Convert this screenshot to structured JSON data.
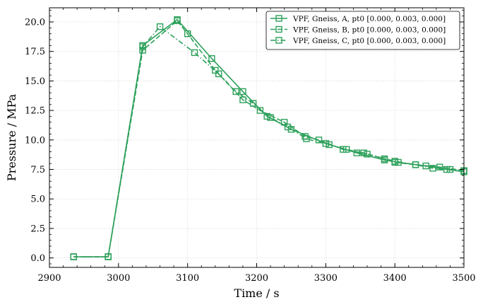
{
  "chart_data": {
    "type": "line",
    "xlabel": "Time / s",
    "ylabel": "Pressure / MPa",
    "xlim": [
      2900,
      3500
    ],
    "ylim": [
      -0.8,
      21.2
    ],
    "x_ticks": [
      2900,
      3000,
      3100,
      3200,
      3300,
      3400,
      3500
    ],
    "x_tick_labels": [
      "2900",
      "3000",
      "3100",
      "3200",
      "3300",
      "3400",
      "3500"
    ],
    "y_ticks": [
      0,
      2.5,
      5,
      7.5,
      10,
      12.5,
      15,
      17.5,
      20
    ],
    "y_tick_labels": [
      "0.0",
      "2.5",
      "5.0",
      "7.5",
      "10.0",
      "12.5",
      "15.0",
      "17.5",
      "20.0"
    ],
    "grid": true,
    "legend_position": "top-right",
    "color": "#2ca05a",
    "series": [
      {
        "name": "VPF, Gneiss, A, pt0 [0.000, 0.003, 0.000]",
        "dash": "solid",
        "x": [
          2935,
          2985,
          3035,
          3085,
          3135,
          3180,
          3215,
          3250,
          3300,
          3345,
          3385,
          3405,
          3445,
          3475,
          3500
        ],
        "y": [
          0.1,
          0.1,
          18.0,
          20.2,
          16.9,
          14.1,
          12.0,
          10.9,
          9.7,
          8.9,
          8.3,
          8.1,
          7.8,
          7.5,
          7.3
        ]
      },
      {
        "name": "VPF, Gneiss, B, pt0 [0.000, 0.003, 0.000]",
        "dash": "dashed",
        "x": [
          2935,
          2985,
          3035,
          3085,
          3100,
          3140,
          3180,
          3205,
          3240,
          3270,
          3290,
          3325,
          3355,
          3385,
          3400,
          3430,
          3465,
          3500
        ],
        "y": [
          0.1,
          0.1,
          17.6,
          20.1,
          19.0,
          15.9,
          13.4,
          12.5,
          11.5,
          10.3,
          10.0,
          9.2,
          8.9,
          8.4,
          8.1,
          7.9,
          7.7,
          7.4
        ]
      },
      {
        "name": "VPF, Gneiss, C, pt0 [0.000, 0.003, 0.000]",
        "dash": "dashdot",
        "x": [
          2935,
          2985,
          3035,
          3060,
          3110,
          3145,
          3170,
          3195,
          3220,
          3245,
          3272,
          3305,
          3330,
          3360,
          3400,
          3430,
          3455,
          3480,
          3500
        ],
        "y": [
          0.1,
          0.1,
          17.9,
          19.6,
          17.4,
          15.6,
          14.1,
          13.1,
          11.9,
          11.1,
          10.1,
          9.6,
          9.2,
          8.8,
          8.2,
          7.9,
          7.6,
          7.5,
          7.4
        ]
      }
    ]
  }
}
